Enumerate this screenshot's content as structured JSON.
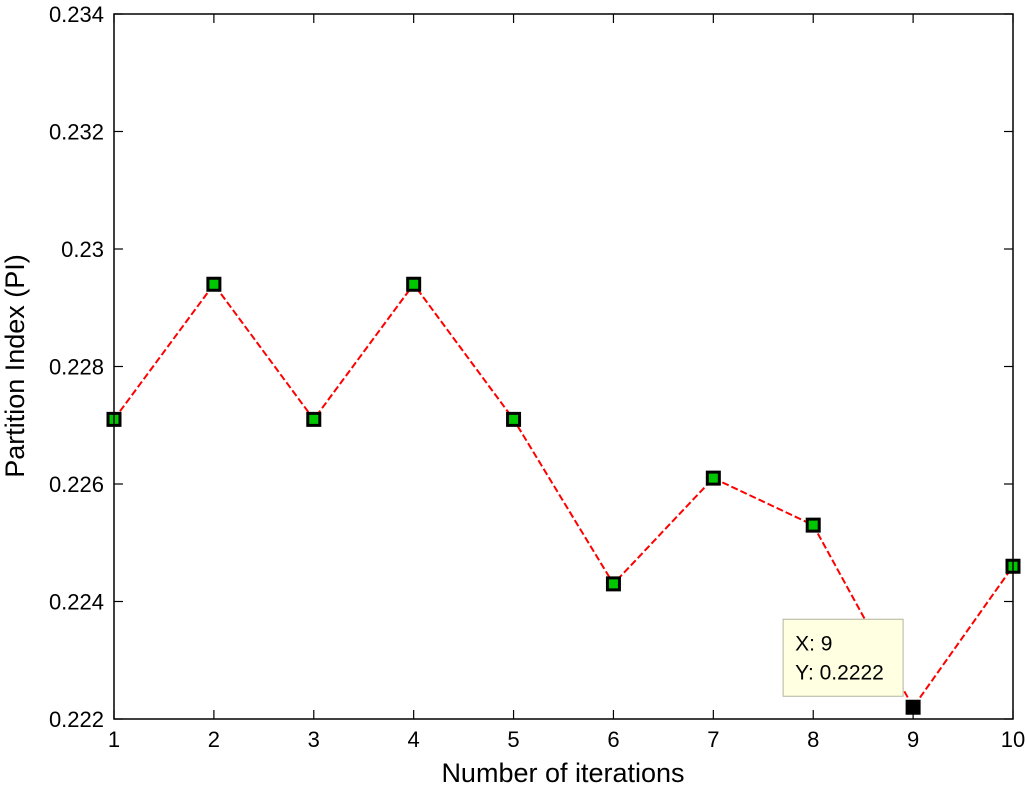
{
  "chart_data": {
    "type": "line",
    "title": "",
    "xlabel": "Number of iterations",
    "ylabel": "Partition Index (PI)",
    "xlim": [
      1,
      10
    ],
    "ylim": [
      0.222,
      0.234
    ],
    "x_ticks": [
      "1",
      "2",
      "3",
      "4",
      "5",
      "6",
      "7",
      "8",
      "9",
      "10"
    ],
    "y_ticks": [
      "0.222",
      "0.224",
      "0.226",
      "0.228",
      "0.23",
      "0.232",
      "0.234"
    ],
    "grid": false,
    "legend": "none",
    "series": [
      {
        "x": [
          1,
          2,
          3,
          4,
          5,
          6,
          7,
          8,
          9,
          10
        ],
        "y": [
          0.2271,
          0.2294,
          0.2271,
          0.2294,
          0.2271,
          0.2243,
          0.2261,
          0.2253,
          0.2222,
          0.2246
        ],
        "line_color": "#ff0000",
        "line_style": "dashed",
        "marker": "square",
        "marker_face": "#00c800",
        "marker_edge": "#000000"
      }
    ],
    "datatip": {
      "x": 9,
      "y": 0.2222,
      "x_text": "X: 9",
      "y_text": "Y: 0.2222",
      "background": "#ffffe1",
      "highlight_marker": "#000000"
    }
  }
}
